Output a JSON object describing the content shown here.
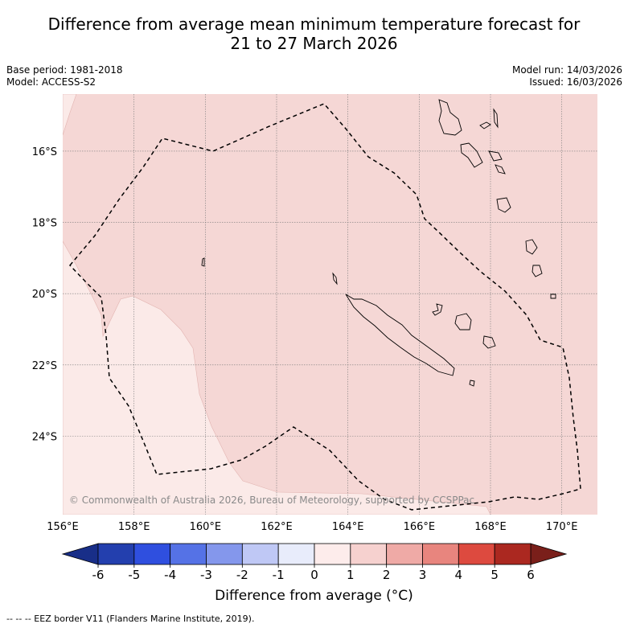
{
  "chart_data": {
    "type": "heatmap",
    "title_line1": "Difference from average mean minimum temperature forecast for",
    "title_line2": "21 to 27 March 2026",
    "base_period": "Base period: 1981-2018",
    "model": "Model: ACCESS-S2",
    "model_run": "Model run: 14/03/2026",
    "issued": "Issued: 16/03/2026",
    "x_ticks": [
      "156°E",
      "158°E",
      "160°E",
      "162°E",
      "164°E",
      "166°E",
      "168°E",
      "170°E"
    ],
    "x_tick_values": [
      156,
      158,
      160,
      162,
      164,
      166,
      168,
      170
    ],
    "y_ticks": [
      "16°S",
      "18°S",
      "20°S",
      "22°S",
      "24°S"
    ],
    "y_tick_values": [
      -16,
      -18,
      -20,
      -22,
      -24
    ],
    "lon_range": [
      156,
      171
    ],
    "lat_range": [
      -26.2,
      -14.4
    ],
    "regions": [
      {
        "name": "difference 1 to 2 °C",
        "bin": [
          1,
          2
        ],
        "color": "#f5d7d5"
      },
      {
        "name": "difference 0 to 1 °C",
        "bin": [
          0,
          1
        ],
        "color": "#fbeae8"
      }
    ],
    "colorbar": {
      "ticks": [
        "-6",
        "-5",
        "-4",
        "-3",
        "-2",
        "-1",
        "0",
        "1",
        "2",
        "3",
        "4",
        "5",
        "6"
      ],
      "bounds": [
        -6,
        -5,
        -4,
        -3,
        -2,
        -1,
        0,
        1,
        2,
        3,
        4,
        5,
        6
      ],
      "colors": [
        "#233fae",
        "#2f4fdf",
        "#5572e6",
        "#8497ec",
        "#bfc8f5",
        "#e8ecfb",
        "#fdeceb",
        "#f6d1cf",
        "#efaaa6",
        "#e8857e",
        "#dd4a3f",
        "#ab2820"
      ],
      "under_color": "#182e88",
      "over_color": "#7a1f1a",
      "label": "Difference from average (°C)"
    },
    "copyright": "© Commonwealth of Australia 2026, Bureau of Meteorology, supported by CCSPPac",
    "footnote": "--  --  -- EEZ border V11 (Flanders Marine Institute, 2019)."
  }
}
